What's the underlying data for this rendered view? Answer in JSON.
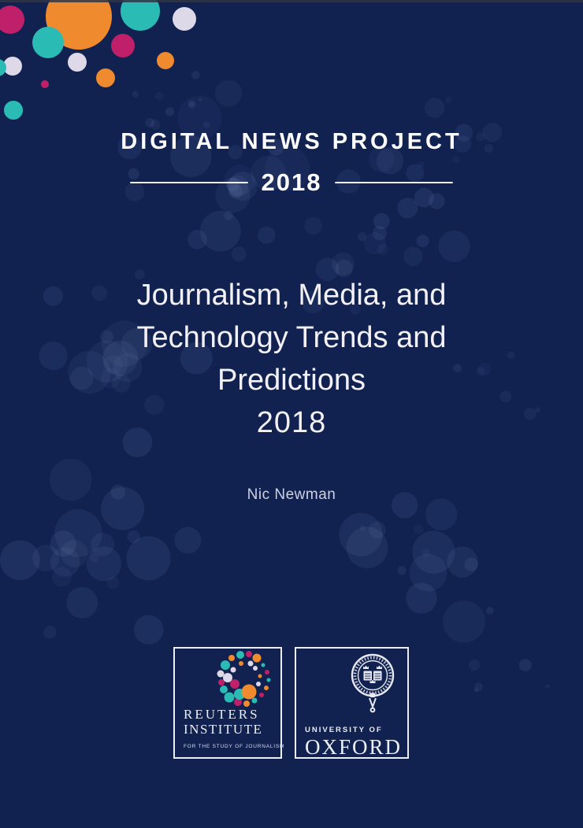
{
  "document": {
    "kind": "report-cover",
    "header": {
      "project_title": "DIGITAL NEWS PROJECT",
      "year": "2018"
    },
    "title": {
      "lines": [
        "Journalism, Media, and",
        "Technology Trends and",
        "Predictions"
      ],
      "year": "2018"
    },
    "author": "Nic Newman",
    "logos": {
      "reuters_institute": {
        "icon": "dotted-spiral-icon",
        "name_line1": "REUTERS",
        "name_line2": "INSTITUTE",
        "tagline": "FOR THE STUDY OF JOURNALISM"
      },
      "university_of_oxford": {
        "icon": "oxford-crest-icon",
        "name_line1": "UNIVERSITY OF",
        "name_line2": "OXFORD"
      }
    }
  },
  "palette": {
    "navy_background": "#112251",
    "bubble_tint": "rgba(170,195,245,0.09)",
    "orange": "#ef8b2e",
    "teal": "#2abcb4",
    "magenta": "#c02069",
    "lavender": "#ddd9e8",
    "text_white": "#f3f1f6",
    "logo_border": "#eceef5"
  }
}
